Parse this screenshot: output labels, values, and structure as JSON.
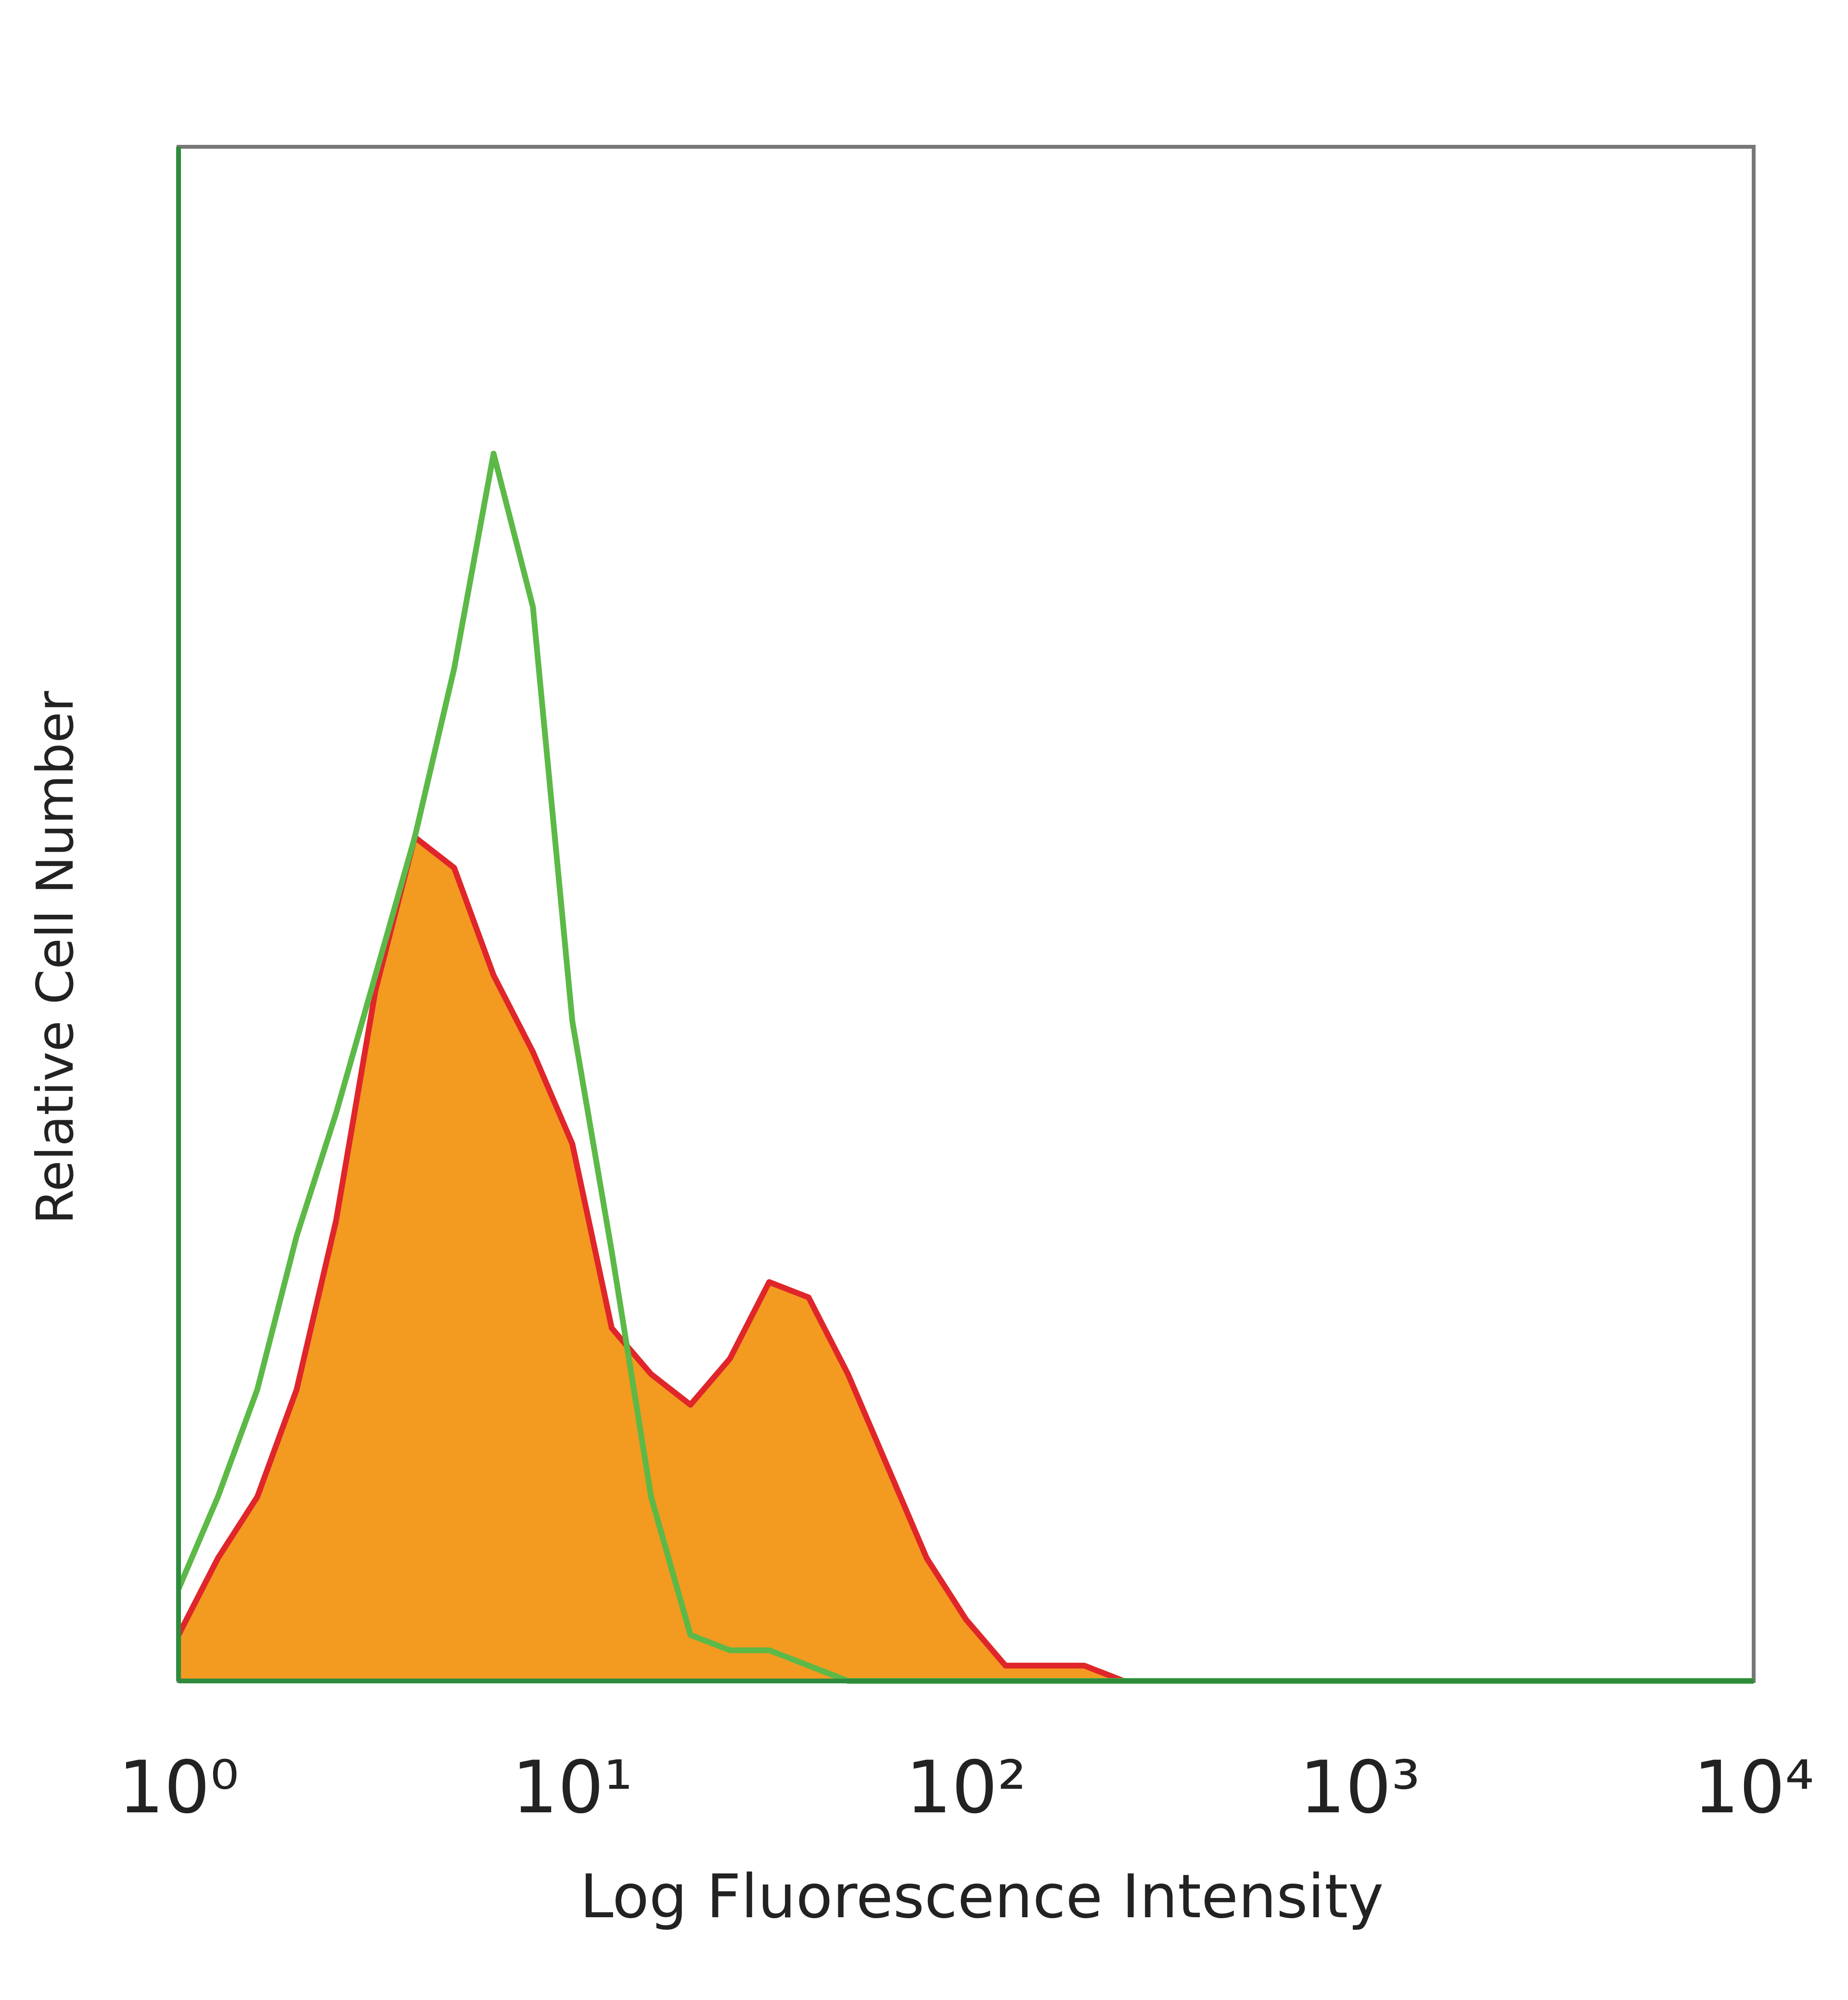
{
  "chart_data": {
    "type": "histogram-overlay",
    "x_label": "Log Fluorescence Intensity",
    "y_label": "Relative Cell Number",
    "xscale": "log",
    "xlim": [
      1,
      10000
    ],
    "ylim": [
      0,
      100
    ],
    "xticks": [
      {
        "value": 1,
        "label": "10⁰"
      },
      {
        "value": 10,
        "label": "10¹"
      },
      {
        "value": 100,
        "label": "10²"
      },
      {
        "value": 1000,
        "label": "10³"
      },
      {
        "value": 10000,
        "label": "10⁴"
      }
    ],
    "x": [
      1,
      1.259,
      1.585,
      1.995,
      2.512,
      3.162,
      3.981,
      5.012,
      6.31,
      7.943,
      10,
      12.59,
      15.85,
      19.95,
      25.12,
      31.62,
      39.81,
      50.12,
      63.1,
      79.43,
      100,
      125.9,
      158.5,
      199.5,
      251.2,
      316.2,
      398.1,
      501.2,
      631,
      794.3,
      1000,
      1259,
      1585,
      1995,
      2512,
      3162,
      3981,
      5012,
      6310,
      7943,
      10000
    ],
    "series": [
      {
        "color": "#5cb947",
        "values": [
          6,
          12,
          19,
          29,
          37,
          46,
          55,
          66,
          80,
          70,
          43,
          28,
          12,
          3,
          2,
          2,
          1,
          0,
          0,
          0,
          0,
          0,
          0,
          0,
          0,
          0,
          0,
          0,
          0,
          0,
          0,
          0,
          0,
          0,
          0,
          0,
          0,
          0,
          0,
          0,
          0
        ]
      },
      {
        "color": "#e0262a",
        "fill_color": "#f39a21",
        "values": [
          3,
          8,
          12,
          19,
          30,
          45,
          55,
          53,
          46,
          41,
          35,
          23,
          20,
          18,
          21,
          26,
          25,
          20,
          14,
          8,
          4,
          1,
          1,
          1,
          0,
          0,
          0,
          0,
          0,
          0,
          0,
          0,
          0,
          0,
          0,
          0,
          0,
          0,
          0,
          0,
          0
        ]
      }
    ]
  }
}
